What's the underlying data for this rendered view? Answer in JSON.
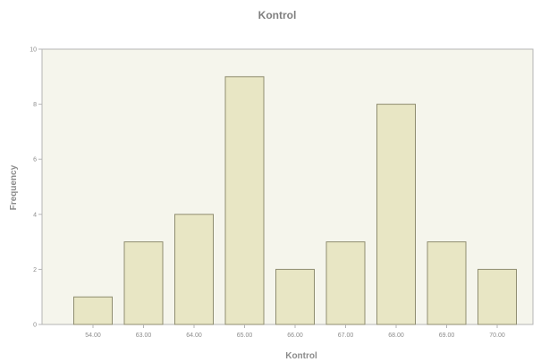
{
  "chart_data": {
    "type": "bar",
    "title": "Kontrol",
    "xlabel": "Kontrol",
    "ylabel": "Frequency",
    "categories": [
      "54.00",
      "63.00",
      "64.00",
      "65.00",
      "66.00",
      "67.00",
      "68.00",
      "69.00",
      "70.00"
    ],
    "values": [
      1,
      3,
      4,
      9,
      2,
      3,
      8,
      3,
      2
    ],
    "ylim": [
      0,
      10
    ],
    "yticks": [
      "0",
      "2",
      "4",
      "6",
      "8",
      "10"
    ],
    "grid": false,
    "legend": "none",
    "colors": {
      "bar_fill": "#e8e6c4",
      "bar_stroke": "#8f8d70",
      "plot_bg": "#f5f5ec",
      "frame": "#b5b5b5",
      "text": "#8c8c8c"
    }
  }
}
